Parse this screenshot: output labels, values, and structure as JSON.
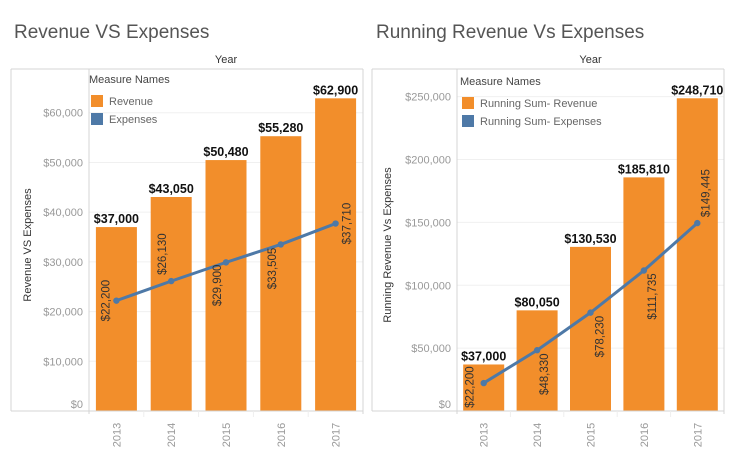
{
  "colors": {
    "revenue": "#F28E2B",
    "expenses": "#4E79A7"
  },
  "chart_data": [
    {
      "type": "bar+line",
      "title": "Revenue VS Expenses",
      "column_header": "Year",
      "ylabel": "Revenue VS Expenses",
      "categories": [
        "2013",
        "2014",
        "2015",
        "2016",
        "2017"
      ],
      "yticks": [
        0,
        10000,
        20000,
        30000,
        40000,
        50000,
        60000
      ],
      "ytick_labels": [
        "$0",
        "$10,000",
        "$20,000",
        "$30,000",
        "$40,000",
        "$50,000",
        "$60,000"
      ],
      "ylim": [
        0,
        68800
      ],
      "grid": true,
      "legend": {
        "title": "Measure Names",
        "placement": "top-left"
      },
      "series": [
        {
          "name": "Revenue",
          "mark": "bar",
          "values": [
            37000,
            43050,
            50480,
            55280,
            62900
          ],
          "labels": [
            "$37,000",
            "$43,050",
            "$50,480",
            "$55,280",
            "$62,900"
          ]
        },
        {
          "name": "Expenses",
          "mark": "line",
          "values": [
            22200,
            26130,
            29900,
            33505,
            37710
          ],
          "labels": [
            "$22,200",
            "$26,130",
            "$29,900",
            "$33,505",
            "$37,710"
          ]
        }
      ]
    },
    {
      "type": "bar+line",
      "title": "Running Revenue Vs Expenses",
      "column_header": "Year",
      "ylabel": "Running Revenue Vs Expenses",
      "categories": [
        "2013",
        "2014",
        "2015",
        "2016",
        "2017"
      ],
      "yticks": [
        0,
        50000,
        100000,
        150000,
        200000,
        250000
      ],
      "ytick_labels": [
        "$0",
        "$50,000",
        "$100,000",
        "$150,000",
        "$200,000",
        "$250,000"
      ],
      "ylim": [
        0,
        272000
      ],
      "grid": true,
      "legend": {
        "title": "Measure Names",
        "placement": "top-left"
      },
      "series": [
        {
          "name": "Running Sum- Revenue",
          "mark": "bar",
          "values": [
            37000,
            80050,
            130530,
            185810,
            248710
          ],
          "labels": [
            "$37,000",
            "$80,050",
            "$130,530",
            "$185,810",
            "$248,710"
          ]
        },
        {
          "name": "Running Sum- Expenses",
          "mark": "line",
          "values": [
            22200,
            48330,
            78230,
            111735,
            149445
          ],
          "labels": [
            "$22,200",
            "$48,330",
            "$78,230",
            "$111,735",
            "$149,445"
          ]
        }
      ]
    }
  ]
}
